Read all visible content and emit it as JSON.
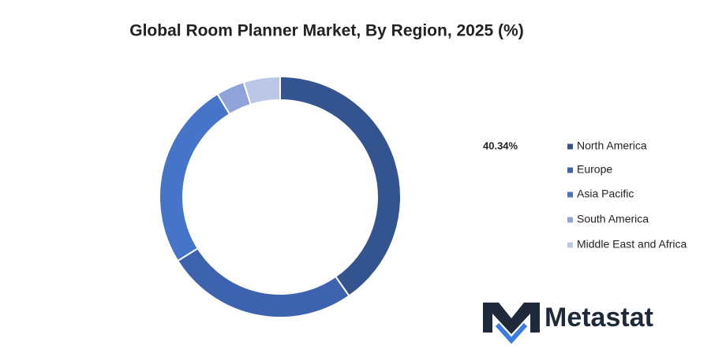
{
  "chart_data": {
    "type": "donut",
    "title": "Global Room Planner Market, By Region, 2025 (%)",
    "categories": [
      "North America",
      "Europe",
      "Asia Pacific",
      "South America",
      "Middle East and Africa"
    ],
    "values": [
      40.34,
      25.8,
      25.2,
      3.8,
      4.9
    ],
    "value_labels": [
      "40.34%",
      null,
      null,
      null,
      null
    ],
    "colors": [
      "#34548f",
      "#3d62ae",
      "#4674c9",
      "#8fa3d8",
      "#bcc7e8"
    ],
    "legend": "right"
  },
  "logo": {
    "text": "Metastat"
  }
}
